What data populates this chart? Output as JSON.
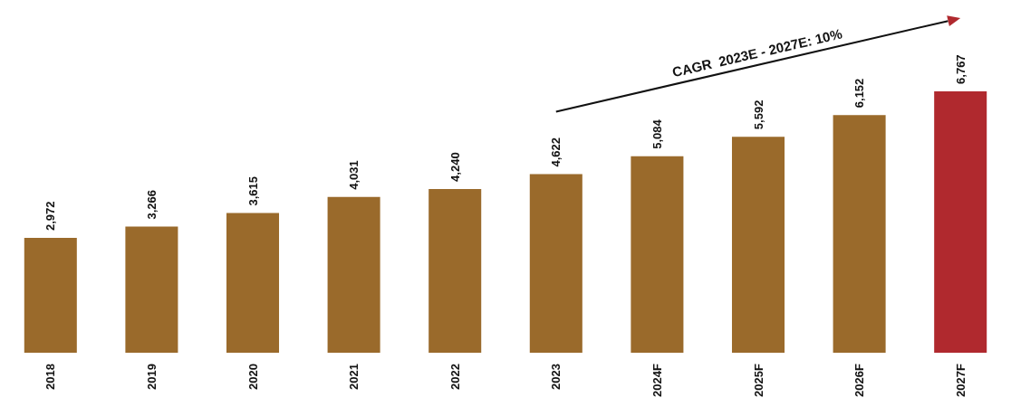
{
  "chart_data": {
    "type": "bar",
    "categories": [
      "2018",
      "2019",
      "2020",
      "2021",
      "2022",
      "2023",
      "2024F",
      "2025F",
      "2026F",
      "2027F"
    ],
    "values": [
      2972,
      3266,
      3615,
      4031,
      4240,
      4622,
      5084,
      5592,
      6152,
      6767
    ],
    "colors": [
      "#9a6a2b",
      "#9a6a2b",
      "#9a6a2b",
      "#9a6a2b",
      "#9a6a2b",
      "#9a6a2b",
      "#9a6a2b",
      "#9a6a2b",
      "#9a6a2b",
      "#b0292e"
    ],
    "value_labels": [
      "2,972",
      "3,266",
      "3,615",
      "4,031",
      "4,240",
      "4,622",
      "5,084",
      "5,592",
      "6,152",
      "6,767"
    ],
    "tick_labels": "x",
    "annotations": [
      "CAGR  2023E - 2027E: 10%"
    ]
  }
}
